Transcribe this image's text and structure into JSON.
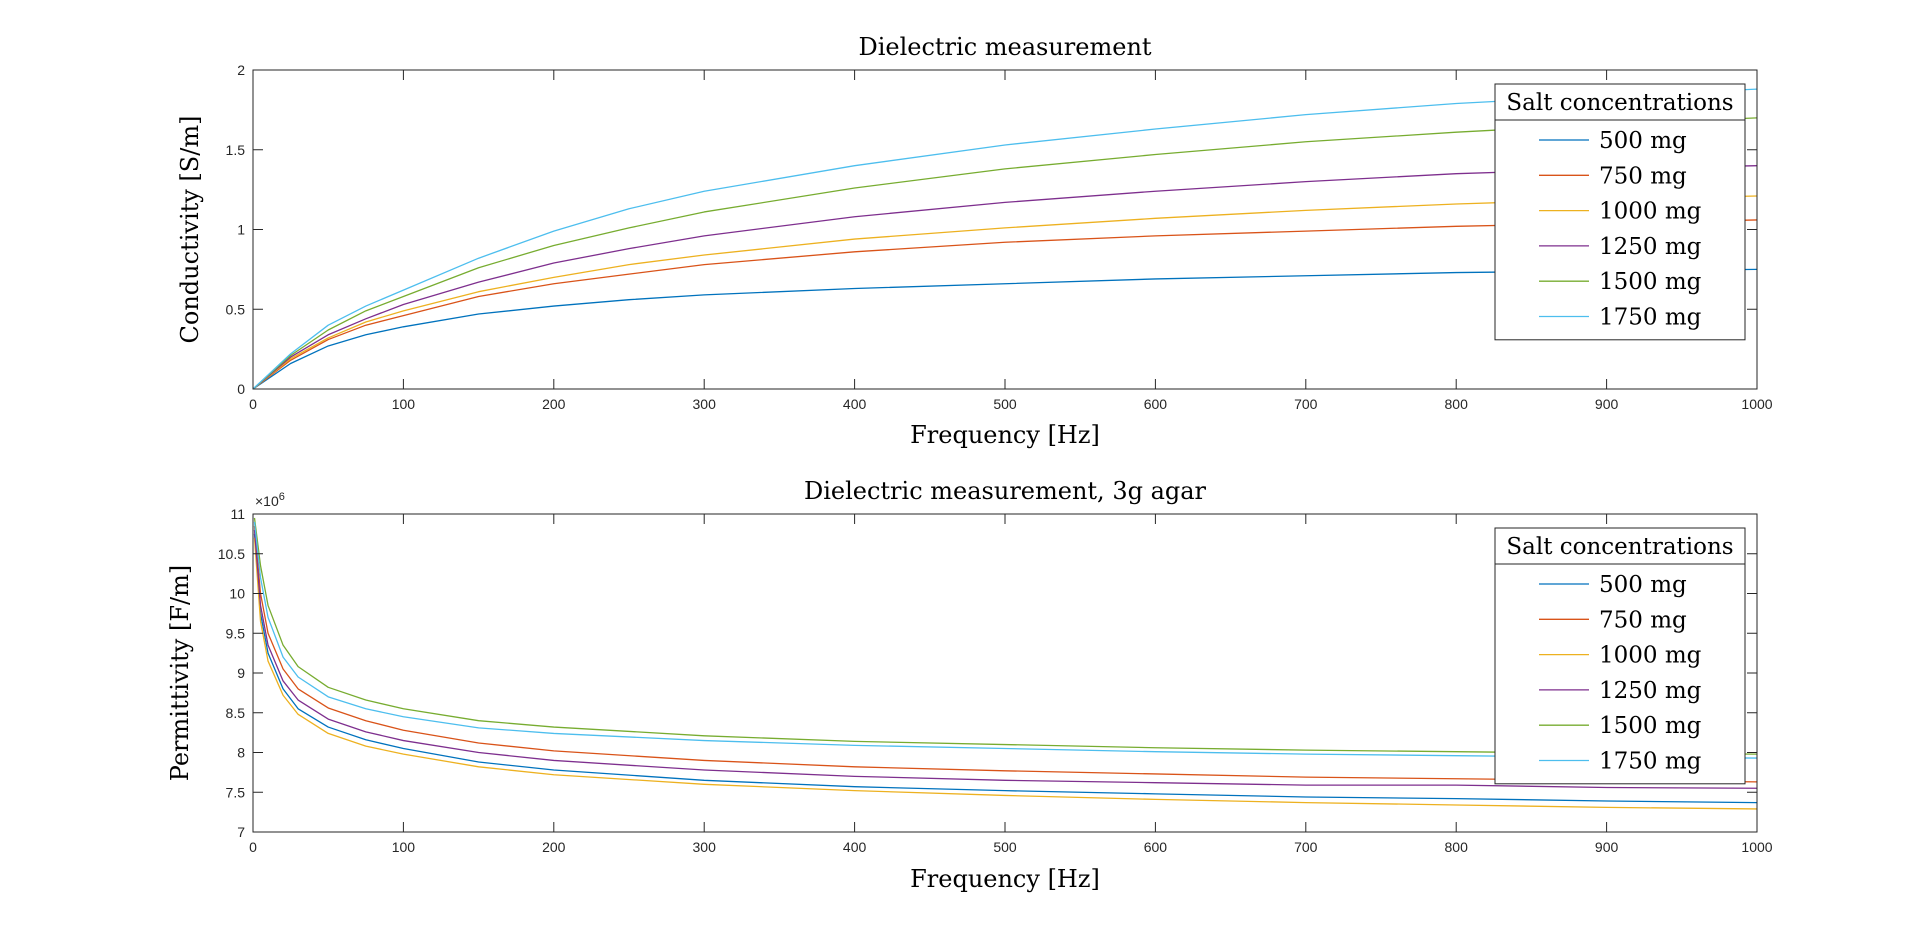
{
  "chart_data": [
    {
      "type": "line",
      "title": "Dielectric measurement",
      "xlabel": "Frequency [Hz]",
      "ylabel": "Conductivity [S/m]",
      "xlim": [
        0,
        1000
      ],
      "ylim": [
        0,
        2
      ],
      "xticks": [
        "0",
        "100",
        "200",
        "300",
        "400",
        "500",
        "600",
        "700",
        "800",
        "900",
        "1000"
      ],
      "yticks": [
        "0",
        "0.5",
        "1",
        "1.5",
        "2"
      ],
      "grid": false,
      "legend": {
        "title": "Salt concentrations",
        "placement": "top-right"
      },
      "x": [
        0,
        25,
        50,
        75,
        100,
        150,
        200,
        250,
        300,
        400,
        500,
        600,
        700,
        800,
        900,
        1000
      ],
      "series": [
        {
          "name": "500 mg",
          "color": "#0072BD",
          "values": [
            0,
            0.16,
            0.27,
            0.34,
            0.39,
            0.47,
            0.52,
            0.56,
            0.59,
            0.63,
            0.66,
            0.69,
            0.71,
            0.73,
            0.74,
            0.75
          ]
        },
        {
          "name": "750 mg",
          "color": "#D95319",
          "values": [
            0,
            0.18,
            0.31,
            0.4,
            0.46,
            0.58,
            0.66,
            0.72,
            0.78,
            0.86,
            0.92,
            0.96,
            0.99,
            1.02,
            1.04,
            1.06
          ]
        },
        {
          "name": "1000 mg",
          "color": "#EDB120",
          "values": [
            0,
            0.19,
            0.32,
            0.42,
            0.49,
            0.61,
            0.7,
            0.78,
            0.84,
            0.94,
            1.01,
            1.07,
            1.12,
            1.16,
            1.19,
            1.21
          ]
        },
        {
          "name": "1250 mg",
          "color": "#7E2F8E",
          "values": [
            0,
            0.2,
            0.34,
            0.44,
            0.53,
            0.67,
            0.79,
            0.88,
            0.96,
            1.08,
            1.17,
            1.24,
            1.3,
            1.35,
            1.38,
            1.4
          ]
        },
        {
          "name": "1500 mg",
          "color": "#77AC30",
          "values": [
            0,
            0.21,
            0.37,
            0.49,
            0.58,
            0.76,
            0.9,
            1.01,
            1.11,
            1.26,
            1.38,
            1.47,
            1.55,
            1.61,
            1.66,
            1.7
          ]
        },
        {
          "name": "1750 mg",
          "color": "#4DBEEE",
          "values": [
            0,
            0.22,
            0.4,
            0.52,
            0.62,
            0.82,
            0.99,
            1.13,
            1.24,
            1.4,
            1.53,
            1.63,
            1.72,
            1.79,
            1.84,
            1.88
          ]
        }
      ]
    },
    {
      "type": "line",
      "title": "Dielectric measurement, 3g agar",
      "xlabel": "Frequency [Hz]",
      "ylabel": "Permittivity [F/m]",
      "xlim": [
        0,
        1000
      ],
      "ylim": [
        7,
        11
      ],
      "xticks": [
        "0",
        "100",
        "200",
        "300",
        "400",
        "500",
        "600",
        "700",
        "800",
        "900",
        "1000"
      ],
      "yticks": [
        "7",
        "7.5",
        "8",
        "8.5",
        "9",
        "9.5",
        "10",
        "10.5",
        "11"
      ],
      "y_exponent_label": "×10",
      "y_exponent": "6",
      "grid": false,
      "legend": {
        "title": "Salt concentrations",
        "placement": "top-right"
      },
      "x": [
        1,
        5,
        10,
        20,
        30,
        50,
        75,
        100,
        150,
        200,
        300,
        400,
        500,
        600,
        700,
        800,
        900,
        1000
      ],
      "series": [
        {
          "name": "500 mg",
          "color": "#0072BD",
          "values": [
            10.75,
            9.75,
            9.25,
            8.8,
            8.55,
            8.32,
            8.16,
            8.05,
            7.88,
            7.78,
            7.65,
            7.57,
            7.52,
            7.48,
            7.44,
            7.42,
            7.39,
            7.37
          ]
        },
        {
          "name": "750 mg",
          "color": "#D95319",
          "values": [
            10.85,
            10.0,
            9.5,
            9.05,
            8.8,
            8.56,
            8.4,
            8.28,
            8.12,
            8.02,
            7.9,
            7.82,
            7.77,
            7.73,
            7.69,
            7.67,
            7.65,
            7.63
          ]
        },
        {
          "name": "1000 mg",
          "color": "#EDB120",
          "values": [
            10.7,
            9.65,
            9.15,
            8.72,
            8.48,
            8.24,
            8.08,
            7.98,
            7.82,
            7.72,
            7.6,
            7.52,
            7.46,
            7.41,
            7.37,
            7.34,
            7.31,
            7.29
          ]
        },
        {
          "name": "1250 mg",
          "color": "#7E2F8E",
          "values": [
            10.8,
            9.85,
            9.35,
            8.9,
            8.66,
            8.42,
            8.26,
            8.15,
            8.0,
            7.9,
            7.78,
            7.7,
            7.65,
            7.62,
            7.59,
            7.59,
            7.56,
            7.55
          ]
        },
        {
          "name": "1500 mg",
          "color": "#77AC30",
          "values": [
            10.95,
            10.35,
            9.85,
            9.35,
            9.08,
            8.82,
            8.66,
            8.55,
            8.4,
            8.32,
            8.21,
            8.14,
            8.1,
            8.06,
            8.03,
            8.01,
            7.99,
            7.98
          ]
        },
        {
          "name": "1750 mg",
          "color": "#4DBEEE",
          "values": [
            10.9,
            10.2,
            9.7,
            9.2,
            8.95,
            8.7,
            8.55,
            8.45,
            8.31,
            8.24,
            8.15,
            8.09,
            8.05,
            8.01,
            7.98,
            7.96,
            7.94,
            7.93
          ]
        }
      ]
    }
  ]
}
